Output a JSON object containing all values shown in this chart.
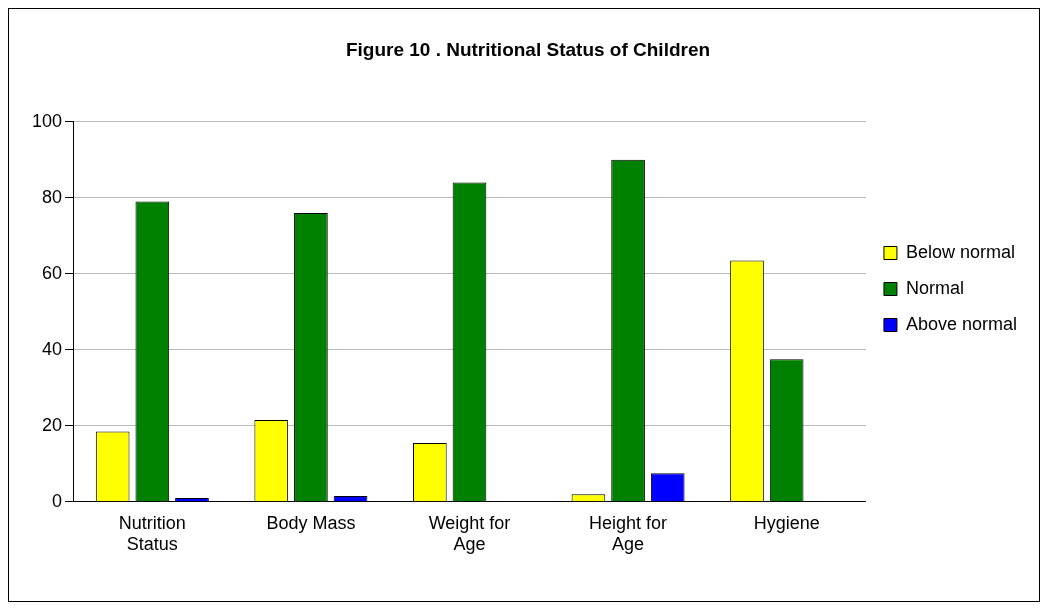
{
  "chart_data": {
    "type": "bar",
    "title": "Figure 10 . Nutritional Status of Children",
    "categories": [
      "Nutrition Status",
      "Body Mass",
      "Weight for Age",
      "Height for Age",
      "Hygiene"
    ],
    "series": [
      {
        "name": "Below normal",
        "color": "#ffff00",
        "values": [
          18.5,
          21.5,
          15.5,
          2,
          63.5
        ]
      },
      {
        "name": "Normal",
        "color": "#008000",
        "values": [
          79,
          76,
          84,
          90,
          37.5
        ]
      },
      {
        "name": "Above normal",
        "color": "#0000ff",
        "values": [
          1,
          1.5,
          0,
          7.5,
          0
        ]
      }
    ],
    "ylim": [
      0,
      100
    ],
    "yticks": [
      0,
      20,
      40,
      60,
      80,
      100
    ],
    "grid": "y",
    "legend": "right"
  }
}
